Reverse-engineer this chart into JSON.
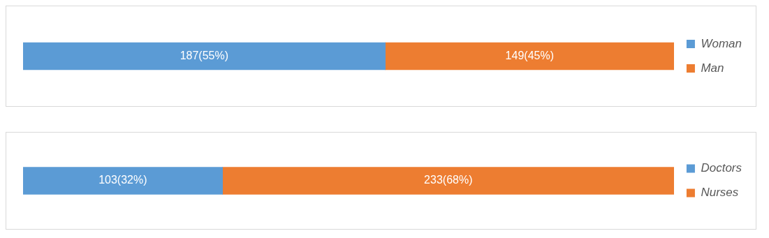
{
  "chart_data": [
    {
      "type": "bar",
      "orientation": "horizontal",
      "stacked": true,
      "categories": [
        null
      ],
      "series": [
        {
          "name": "Woman",
          "color": "#5b9bd5",
          "values": [
            187
          ],
          "value_labels": [
            "187(55%)"
          ]
        },
        {
          "name": "Man",
          "color": "#ed7d31",
          "values": [
            149
          ],
          "value_labels": [
            "149(45%)"
          ]
        }
      ],
      "xlim": [
        0,
        336
      ],
      "legend": "right"
    },
    {
      "type": "bar",
      "orientation": "horizontal",
      "stacked": true,
      "categories": [
        null
      ],
      "series": [
        {
          "name": "Doctors",
          "color": "#5b9bd5",
          "values": [
            103
          ],
          "value_labels": [
            "103(32%)"
          ]
        },
        {
          "name": "Nurses",
          "color": "#ed7d31",
          "values": [
            233
          ],
          "value_labels": [
            "233(68%)"
          ]
        }
      ],
      "xlim": [
        0,
        336
      ],
      "legend": "right"
    }
  ]
}
